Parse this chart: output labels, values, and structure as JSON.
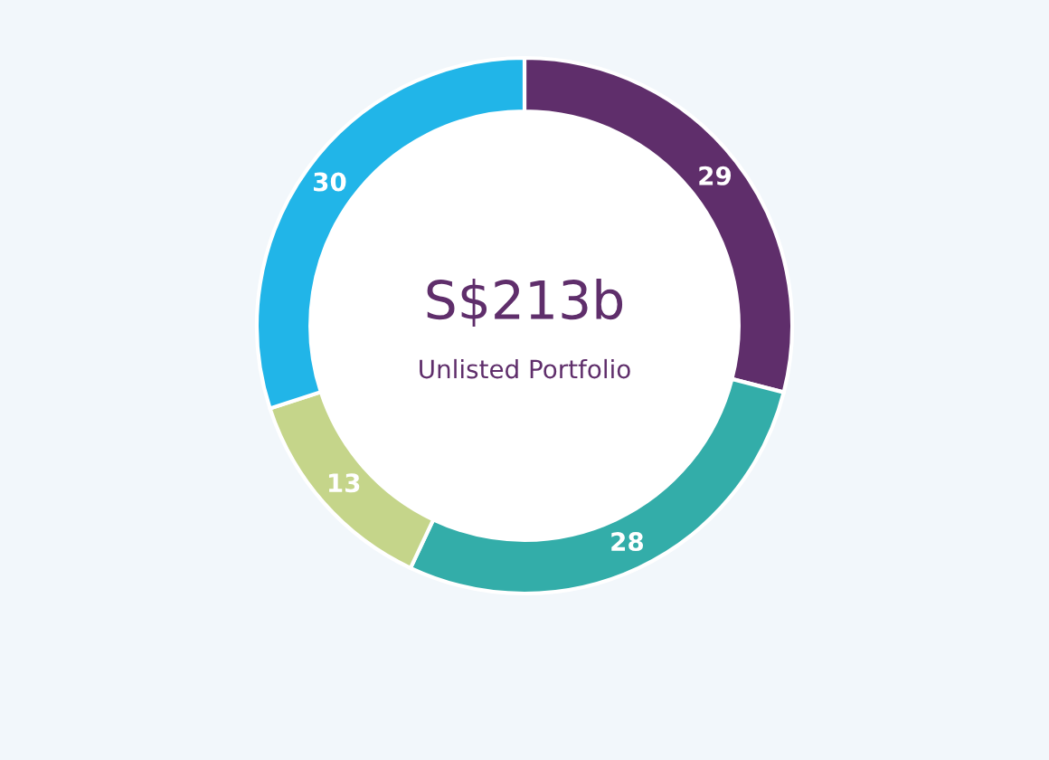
{
  "chart_data": {
    "type": "donut",
    "title": "S$213b",
    "subtitle": "Unlisted Portfolio",
    "categories": [
      null,
      null,
      null,
      null
    ],
    "values": [
      29,
      28,
      13,
      30
    ],
    "colors": [
      "#5f2e6b",
      "#33ada9",
      "#c5d58a",
      "#21b5e8"
    ],
    "data_labels": true
  }
}
